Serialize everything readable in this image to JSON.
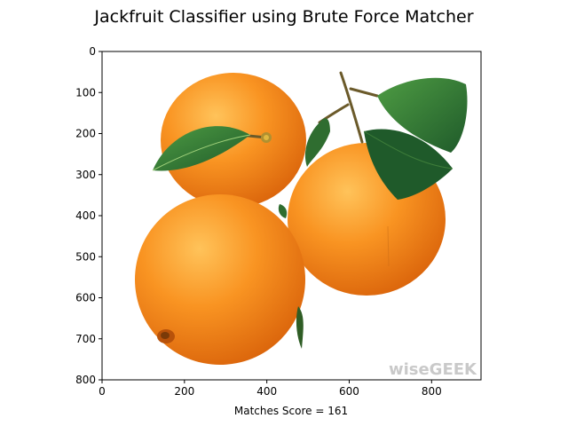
{
  "chart_data": {
    "type": "image",
    "title": "Jackfruit Classifier using Brute Force Matcher",
    "xlabel": "Matches Score =  161",
    "ylabel": "",
    "xlim": [
      0,
      920
    ],
    "ylim": [
      800,
      0
    ],
    "xticks": [
      0,
      200,
      400,
      600,
      800
    ],
    "yticks": [
      0,
      100,
      200,
      300,
      400,
      500,
      600,
      700,
      800
    ],
    "grid": false,
    "watermark": "wiseGEEK"
  },
  "colors": {
    "orange_light": "#ffb13b",
    "orange_mid": "#f7891a",
    "orange_dark": "#d9620a",
    "leaf_dark": "#1f5a2a",
    "leaf_mid": "#3f8a3b",
    "stem": "#6b5a2a"
  }
}
